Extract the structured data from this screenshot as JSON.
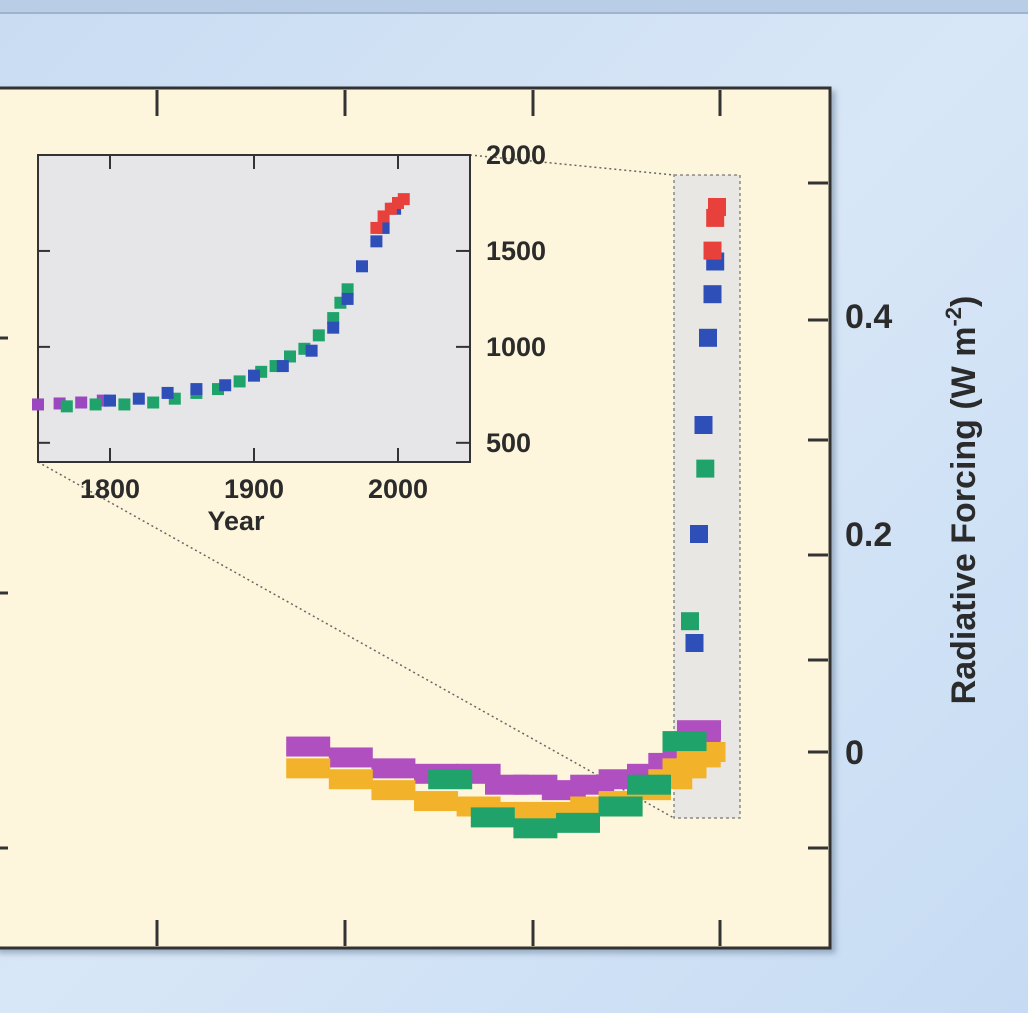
{
  "chart_data": [
    {
      "type": "scatter",
      "title": "",
      "ylabel_right": "Radiative Forcing (W m⁻²)",
      "ylabel_main": "Radiative Forcing (W m",
      "ylabel_sup": "-2",
      "ylabel_close": ")",
      "right_axis": {
        "ticks": [
          "0",
          "0.2",
          "0.4"
        ],
        "values": [
          0,
          0.2,
          0.4
        ]
      },
      "x_range_approx": [
        0,
        2005
      ],
      "series": [
        {
          "color": "#b04fbf",
          "values": [
            [
              1420,
              0.005
            ],
            [
              1480,
              -0.005
            ],
            [
              1540,
              -0.015
            ],
            [
              1600,
              -0.02
            ],
            [
              1660,
              -0.02
            ],
            [
              1700,
              -0.03
            ],
            [
              1740,
              -0.03
            ],
            [
              1780,
              -0.035
            ],
            [
              1820,
              -0.03
            ],
            [
              1860,
              -0.025
            ],
            [
              1900,
              -0.02
            ],
            [
              1930,
              -0.01
            ],
            [
              1950,
              0.0
            ],
            [
              1970,
              0.01
            ],
            [
              1985,
              0.02
            ]
          ]
        },
        {
          "color": "#f2b32a",
          "values": [
            [
              1420,
              -0.015
            ],
            [
              1480,
              -0.025
            ],
            [
              1540,
              -0.035
            ],
            [
              1600,
              -0.045
            ],
            [
              1660,
              -0.05
            ],
            [
              1700,
              -0.055
            ],
            [
              1740,
              -0.055
            ],
            [
              1780,
              -0.055
            ],
            [
              1820,
              -0.05
            ],
            [
              1860,
              -0.045
            ],
            [
              1900,
              -0.035
            ],
            [
              1930,
              -0.025
            ],
            [
              1950,
              -0.015
            ],
            [
              1970,
              -0.005
            ],
            [
              1990,
              0.0
            ]
          ]
        },
        {
          "color": "#1fa36a",
          "values": [
            [
              1620,
              -0.025
            ],
            [
              1680,
              -0.06
            ],
            [
              1740,
              -0.07
            ],
            [
              1800,
              -0.065
            ],
            [
              1860,
              -0.05
            ],
            [
              1900,
              -0.03
            ],
            [
              1950,
              0.01
            ],
            [
              1975,
              0.12
            ],
            [
              1985,
              0.2
            ],
            [
              1992,
              0.26
            ]
          ]
        },
        {
          "color": "#2f4fb8",
          "values": [
            [
              1980,
              0.1
            ],
            [
              1985,
              0.2
            ],
            [
              1990,
              0.3
            ],
            [
              1995,
              0.38
            ],
            [
              2000,
              0.42
            ],
            [
              2003,
              0.45
            ]
          ]
        },
        {
          "color": "#e8413b",
          "values": [
            [
              2000,
              0.46
            ],
            [
              2003,
              0.49
            ],
            [
              2005,
              0.5
            ]
          ]
        }
      ]
    },
    {
      "type": "scatter",
      "xlabel": "Year",
      "x_ticks": [
        "1800",
        "1900",
        "2000"
      ],
      "y_ticks": [
        "500",
        "1000",
        "1500",
        "2000"
      ],
      "xlim": [
        1750,
        2050
      ],
      "ylim": [
        400,
        2000
      ],
      "series": [
        {
          "color": "#9a47c0",
          "values": [
            [
              1750,
              700
            ],
            [
              1765,
              705
            ],
            [
              1780,
              710
            ],
            [
              1795,
              720
            ]
          ]
        },
        {
          "color": "#1fa36a",
          "values": [
            [
              1770,
              690
            ],
            [
              1790,
              700
            ],
            [
              1810,
              700
            ],
            [
              1830,
              710
            ],
            [
              1845,
              730
            ],
            [
              1860,
              760
            ],
            [
              1875,
              780
            ],
            [
              1890,
              820
            ],
            [
              1905,
              870
            ],
            [
              1915,
              900
            ],
            [
              1925,
              950
            ],
            [
              1935,
              990
            ],
            [
              1945,
              1060
            ],
            [
              1955,
              1150
            ],
            [
              1960,
              1230
            ],
            [
              1965,
              1300
            ]
          ]
        },
        {
          "color": "#2f4fb8",
          "values": [
            [
              1800,
              720
            ],
            [
              1820,
              730
            ],
            [
              1840,
              760
            ],
            [
              1860,
              780
            ],
            [
              1880,
              800
            ],
            [
              1900,
              850
            ],
            [
              1920,
              900
            ],
            [
              1940,
              980
            ],
            [
              1955,
              1100
            ],
            [
              1965,
              1250
            ],
            [
              1975,
              1420
            ],
            [
              1985,
              1550
            ],
            [
              1990,
              1620
            ],
            [
              1998,
              1720
            ]
          ]
        },
        {
          "color": "#e8413b",
          "values": [
            [
              1985,
              1620
            ],
            [
              1990,
              1680
            ],
            [
              1995,
              1720
            ],
            [
              2000,
              1750
            ],
            [
              2004,
              1770
            ]
          ]
        }
      ]
    }
  ]
}
